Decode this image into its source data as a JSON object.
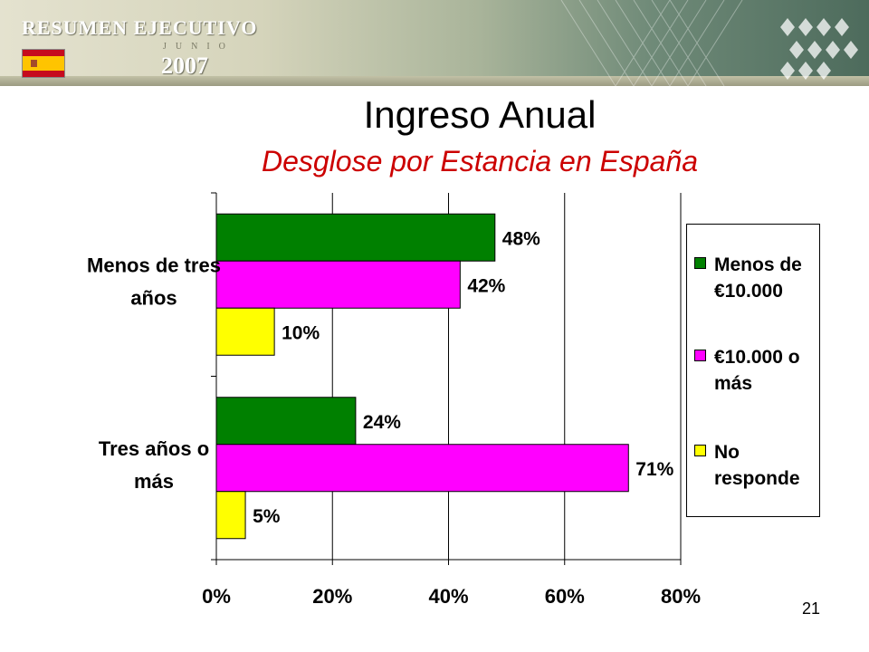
{
  "banner": {
    "title": "RESUMEN EJECUTIVO",
    "month": "JUNIO",
    "year": "2007"
  },
  "slide": {
    "title": "Ingreso Anual",
    "subtitle": "Desglose por Estancia en España",
    "page_number": "21"
  },
  "chart_data": {
    "type": "bar",
    "orientation": "horizontal",
    "categories": [
      "Menos de tres años",
      "Tres años o más"
    ],
    "category_lines": [
      [
        "Menos de tres",
        "años"
      ],
      [
        "Tres años o",
        "más"
      ]
    ],
    "series": [
      {
        "name": "Menos de €10.000",
        "name_lines": [
          "Menos de",
          "€10.000"
        ],
        "color": "#008000",
        "values": [
          48,
          24
        ],
        "labels": [
          "48%",
          "24%"
        ]
      },
      {
        "name": "€10.000 o más",
        "name_lines": [
          "€10.000 o",
          "más"
        ],
        "color": "#ff00ff",
        "values": [
          42,
          71
        ],
        "labels": [
          "42%",
          "71%"
        ]
      },
      {
        "name": "No responde",
        "name_lines": [
          "No",
          "responde"
        ],
        "color": "#ffff00",
        "values": [
          10,
          5
        ],
        "labels": [
          "10%",
          "5%"
        ]
      }
    ],
    "xlim": [
      0,
      80
    ],
    "xticks": [
      0,
      20,
      40,
      60,
      80
    ],
    "xtick_labels": [
      "0%",
      "20%",
      "40%",
      "60%",
      "80%"
    ],
    "grid": "vertical",
    "legend_position": "right"
  }
}
